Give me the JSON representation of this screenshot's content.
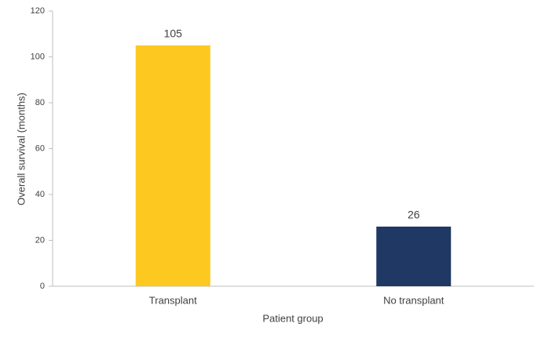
{
  "chart_data": {
    "type": "bar",
    "categories": [
      "Transplant",
      "No transplant"
    ],
    "values": [
      105,
      26
    ],
    "colors": [
      "#fdc820",
      "#1f3864"
    ],
    "xlabel": "Patient group",
    "ylabel": "Overall survival (months)",
    "ylim": [
      0,
      120
    ],
    "yticks": [
      0,
      20,
      40,
      60,
      80,
      100,
      120
    ],
    "grid": false
  }
}
